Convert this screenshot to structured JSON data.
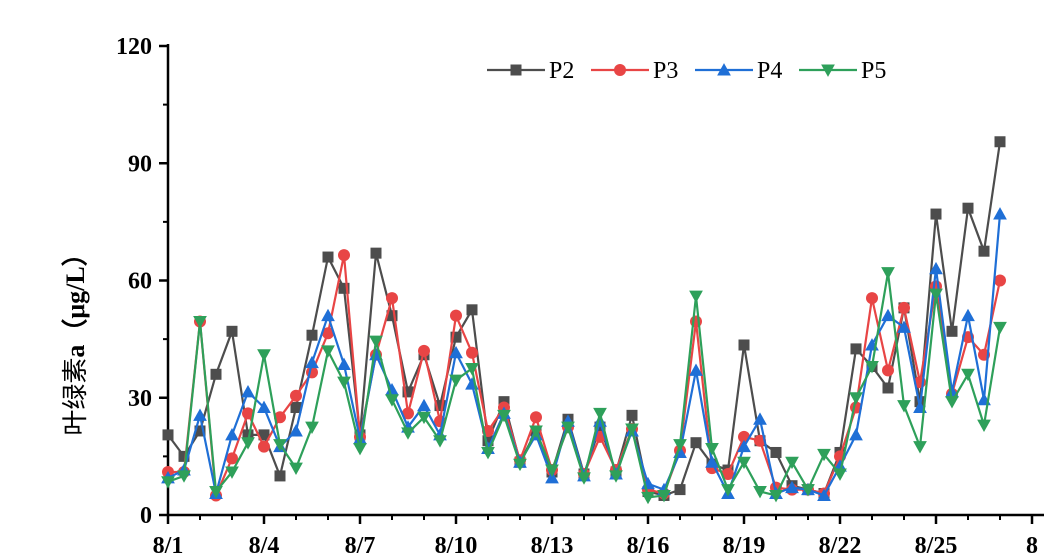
{
  "chart_data": {
    "type": "line",
    "xlabel": "",
    "ylabel_prefix": "叶绿素",
    "ylabel_suffix": "a（μg/L）",
    "ylim": [
      0,
      120
    ],
    "yticks": [
      0,
      30,
      60,
      90,
      120
    ],
    "xlim": [
      1,
      28
    ],
    "xticks": [
      1,
      4,
      7,
      10,
      13,
      16,
      19,
      22,
      25,
      28
    ],
    "xtick_labels": [
      "8/1",
      "8/4",
      "8/7",
      "8/10",
      "8/13",
      "8/16",
      "8/19",
      "8/22",
      "8/25",
      "8"
    ],
    "grid": false,
    "legend_position": "top-right",
    "series": [
      {
        "name": "P2",
        "color": "#4d4d4d",
        "marker": "square",
        "x": [
          1,
          1.5,
          2,
          2.5,
          3,
          3.5,
          4,
          4.5,
          5,
          5.5,
          6,
          6.5,
          7,
          7.5,
          8,
          8.5,
          9,
          9.5,
          10,
          10.5,
          11,
          11.5,
          12,
          12.5,
          13,
          13.5,
          14,
          14.5,
          15,
          15.5,
          16,
          16.5,
          17,
          17.5,
          18,
          18.5,
          19,
          19.5,
          20,
          20.5,
          21,
          21.5,
          22,
          22.5,
          23,
          23.5,
          24,
          24.5,
          25,
          25.5,
          26,
          26.5,
          27,
          27.5
        ],
        "values": [
          20.5,
          15,
          21.5,
          36,
          47,
          20.5,
          20.5,
          10,
          27.5,
          46,
          66,
          58,
          20.5,
          67,
          51,
          31.5,
          41,
          28,
          45.5,
          52.5,
          19,
          29,
          13.5,
          21.5,
          11,
          24.5,
          10.5,
          22.5,
          11,
          25.5,
          6,
          5,
          6.5,
          18.5,
          13,
          11.5,
          43.5,
          19,
          16,
          7.5,
          6.5,
          5.5,
          16,
          42.5,
          38,
          32.5,
          53,
          29,
          77,
          47,
          78.5,
          67.5,
          95.5,
          null
        ]
      },
      {
        "name": "P3",
        "color": "#e84545",
        "marker": "circle",
        "x": [
          1,
          1.5,
          2,
          2.5,
          3,
          3.5,
          4,
          4.5,
          5,
          5.5,
          6,
          6.5,
          7,
          7.5,
          8,
          8.5,
          9,
          9.5,
          10,
          10.5,
          11,
          11.5,
          12,
          12.5,
          13,
          13.5,
          14,
          14.5,
          15,
          15.5,
          16,
          16.5,
          17,
          17.5,
          18,
          18.5,
          19,
          19.5,
          20,
          20.5,
          21,
          21.5,
          22,
          22.5,
          23,
          23.5,
          24,
          24.5,
          25,
          25.5,
          26,
          26.5,
          27,
          27.5
        ],
        "values": [
          11,
          11,
          49.5,
          5,
          14.5,
          26,
          17.5,
          25,
          30.5,
          36.5,
          46.5,
          66.5,
          20,
          41,
          55.5,
          26,
          42,
          24,
          51,
          41.5,
          21.5,
          27.5,
          14,
          25,
          11.5,
          22.5,
          10.5,
          20,
          11.5,
          22,
          6.5,
          5.5,
          16.5,
          49.5,
          12,
          10.5,
          20,
          19,
          7,
          6.5,
          6.5,
          5.5,
          15,
          27.5,
          55.5,
          37,
          53,
          34,
          58.5,
          31,
          45.5,
          41,
          60,
          null
        ]
      },
      {
        "name": "P4",
        "color": "#1f6fd6",
        "marker": "triangle-up",
        "x": [
          1,
          1.5,
          2,
          2.5,
          3,
          3.5,
          4,
          4.5,
          5,
          5.5,
          6,
          6.5,
          7,
          7.5,
          8,
          8.5,
          9,
          9.5,
          10,
          10.5,
          11,
          11.5,
          12,
          12.5,
          13,
          13.5,
          14,
          14.5,
          15,
          15.5,
          16,
          16.5,
          17,
          17.5,
          18,
          18.5,
          19,
          19.5,
          20,
          20.5,
          21,
          21.5,
          22,
          22.5,
          23,
          23.5,
          24,
          24.5,
          25,
          25.5,
          26,
          26.5,
          27,
          27.5
        ],
        "values": [
          9.5,
          11.5,
          25.5,
          5.5,
          20.5,
          31.5,
          27.5,
          17.5,
          21.5,
          39,
          51,
          38.5,
          19.5,
          41,
          32,
          22.5,
          28,
          20.5,
          41.5,
          33.5,
          17,
          26,
          13.5,
          20.5,
          9.5,
          24,
          10,
          24,
          10.5,
          21.5,
          8,
          6.5,
          16,
          37,
          13.5,
          5.5,
          17.5,
          24.5,
          5.5,
          7,
          6.5,
          5,
          12.5,
          20.5,
          43.5,
          51,
          48,
          27.5,
          63,
          31.5,
          51,
          29.5,
          77,
          null
        ]
      },
      {
        "name": "P5",
        "color": "#2ea05a",
        "marker": "triangle-down",
        "x": [
          1,
          1.5,
          2,
          2.5,
          3,
          3.5,
          4,
          4.5,
          5,
          5.5,
          6,
          6.5,
          7,
          7.5,
          8,
          8.5,
          9,
          9.5,
          10,
          10.5,
          11,
          11.5,
          12,
          12.5,
          13,
          13.5,
          14,
          14.5,
          15,
          15.5,
          16,
          16.5,
          17,
          17.5,
          18,
          18.5,
          19,
          19.5,
          20,
          20.5,
          21,
          21.5,
          22,
          22.5,
          23,
          23.5,
          24,
          24.5,
          25,
          25.5,
          26,
          26.5,
          27,
          27.5
        ],
        "values": [
          8.5,
          10,
          49.5,
          6,
          11,
          18.5,
          41,
          18,
          12,
          22.5,
          42,
          34,
          17,
          44.5,
          29.5,
          21,
          25,
          19,
          34.5,
          37.5,
          16,
          25.5,
          13,
          21.5,
          11.5,
          22.5,
          9.5,
          26,
          10,
          22,
          4.5,
          5,
          18,
          56,
          17,
          6.5,
          13.5,
          6,
          5,
          13.5,
          6.5,
          15.5,
          10.5,
          30,
          38,
          62,
          28,
          17.5,
          56.5,
          29,
          36,
          23,
          48,
          null
        ]
      }
    ]
  }
}
